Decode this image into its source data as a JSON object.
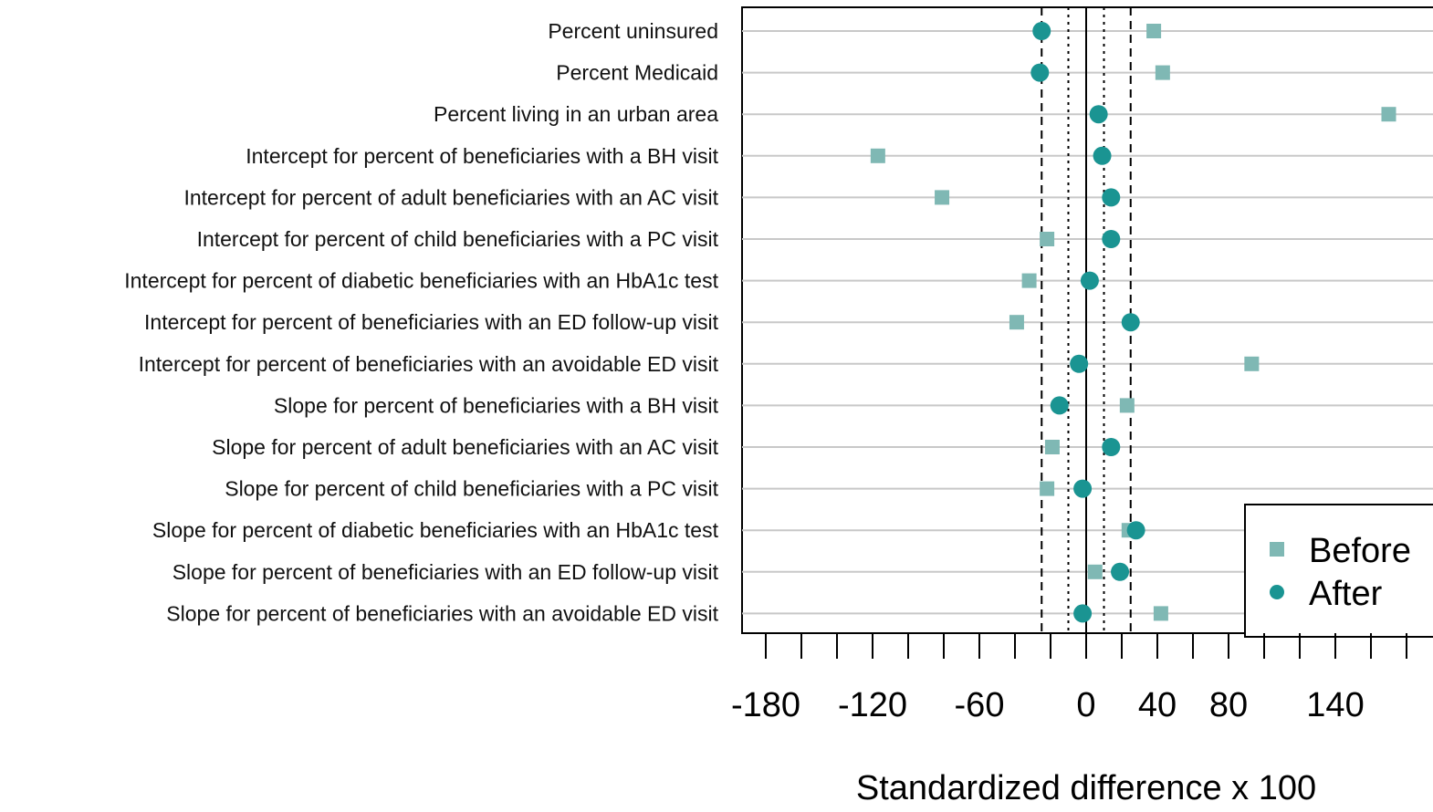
{
  "chart_data": {
    "type": "scatter",
    "xlabel": "Standardized difference x 100",
    "xlim": [
      -187,
      193
    ],
    "x_ticks": [
      -180,
      -160,
      -140,
      -120,
      -100,
      -80,
      -60,
      -40,
      -20,
      0,
      20,
      40,
      60,
      80,
      100,
      120,
      140,
      160,
      180
    ],
    "x_tick_labels": [
      {
        "value": -180,
        "label": "-180"
      },
      {
        "value": -120,
        "label": "-120"
      },
      {
        "value": -60,
        "label": "-60"
      },
      {
        "value": 0,
        "label": "0"
      },
      {
        "value": 40,
        "label": "40"
      },
      {
        "value": 80,
        "label": "80"
      },
      {
        "value": 140,
        "label": "140"
      }
    ],
    "reference_lines": [
      {
        "value": 0,
        "style": "solid"
      },
      {
        "value": -10,
        "style": "dotted"
      },
      {
        "value": 10,
        "style": "dotted"
      },
      {
        "value": -25,
        "style": "dashed"
      },
      {
        "value": 25,
        "style": "dashed"
      }
    ],
    "categories": [
      "Percent uninsured",
      "Percent Medicaid",
      "Percent living in an urban area",
      "Intercept for percent of beneficiaries with a BH visit",
      "Intercept for percent of adult beneficiaries with an AC visit",
      "Intercept for percent of child beneficiaries with a PC visit",
      "Intercept for percent of diabetic beneficiaries with an HbA1c test",
      "Intercept for percent of beneficiaries with an ED follow-up visit",
      "Intercept for percent of beneficiaries with an avoidable ED visit",
      "Slope for percent of beneficiaries with a BH visit",
      "Slope for percent of adult beneficiaries with an AC visit",
      "Slope for percent of child beneficiaries with a PC visit",
      "Slope for percent of diabetic beneficiaries with an HbA1c test",
      "Slope for percent of beneficiaries with an ED follow-up visit",
      "Slope for percent of beneficiaries with an avoidable ED visit"
    ],
    "series": [
      {
        "name": "Before",
        "marker": "square",
        "color": "#7fb8b4",
        "values": [
          38,
          43,
          170,
          -117,
          -81,
          -22,
          -32,
          -39,
          93,
          23,
          -19,
          -22,
          24,
          5,
          42
        ]
      },
      {
        "name": "After",
        "marker": "circle",
        "color": "#1a9492",
        "values": [
          -25,
          -26,
          7,
          9,
          14,
          14,
          2,
          25,
          -4,
          -15,
          14,
          -2,
          28,
          19,
          -2
        ]
      }
    ],
    "legend": {
      "position": "bottom-right"
    },
    "grid": "horizontal"
  }
}
